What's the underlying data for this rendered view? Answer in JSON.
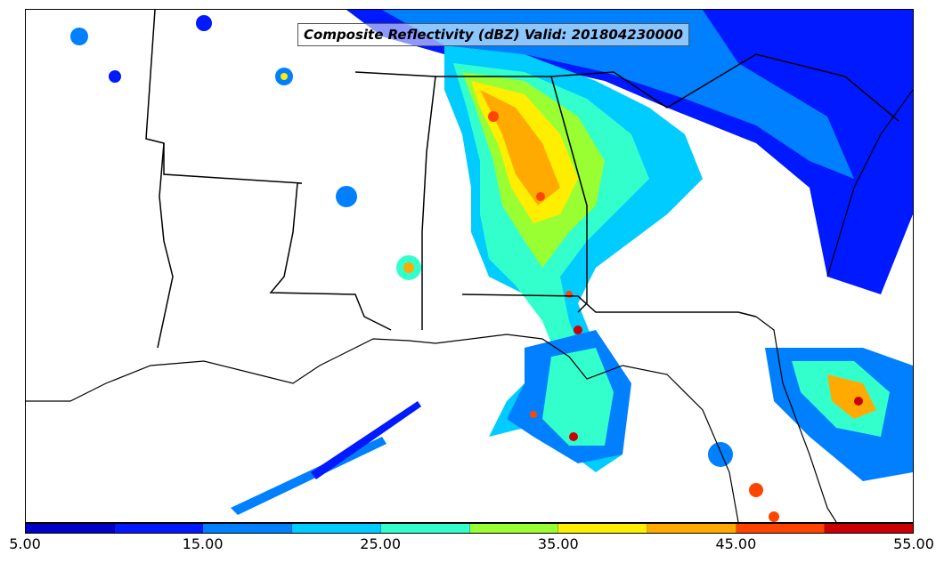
{
  "map": {
    "title": "Composite Reflectivity (dBZ) Valid: 201804230000"
  },
  "colorbar": {
    "colors": [
      "#0000c8",
      "#0019ff",
      "#0080ff",
      "#00ccff",
      "#33ffcc",
      "#99ff33",
      "#ffee00",
      "#ffaa00",
      "#ff4400",
      "#cc0000"
    ],
    "ticks": [
      "5.00",
      "15.00",
      "25.00",
      "35.00",
      "45.00",
      "55.00"
    ]
  }
}
